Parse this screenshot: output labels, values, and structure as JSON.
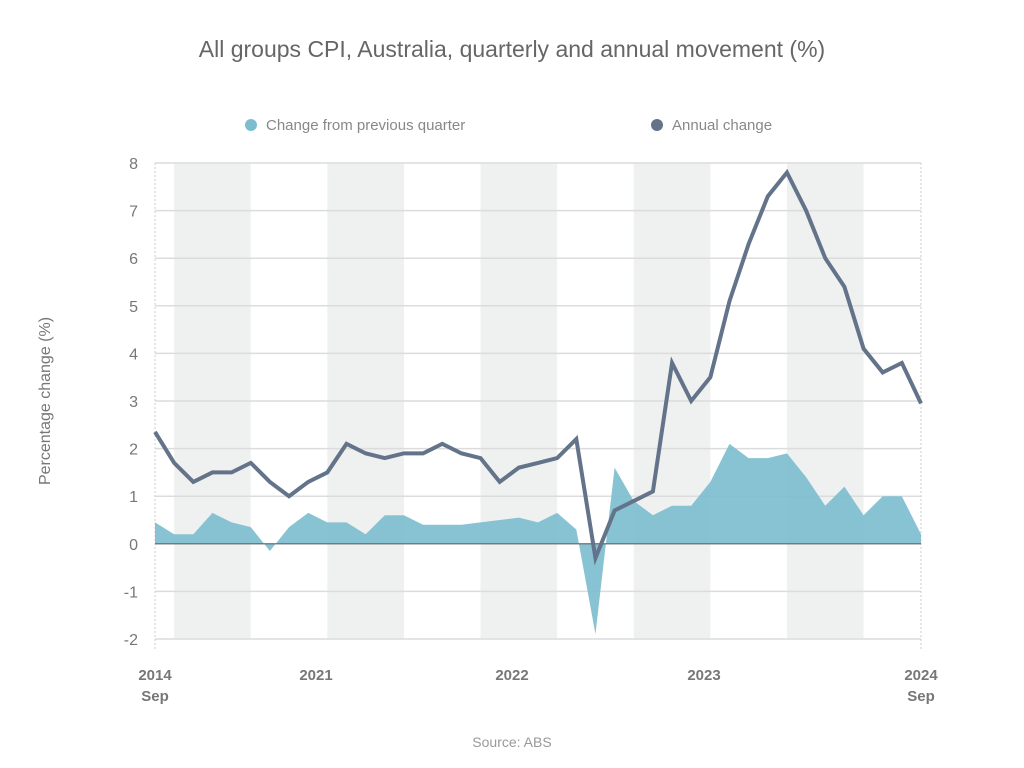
{
  "chart_data": {
    "type": "line",
    "title": "All groups CPI, Australia, quarterly and annual movement (%)",
    "ylabel": "Percentage change (%)",
    "xlabel": "",
    "ylim": [
      -2,
      8
    ],
    "yticks": [
      8,
      7,
      6,
      5,
      4,
      3,
      2,
      1,
      0,
      -1,
      -2
    ],
    "grid": true,
    "legend_placement": "top",
    "x_tick_labels": [
      {
        "line1": "2014",
        "line2": "Sep"
      },
      {
        "line1": "2021",
        "line2": ""
      },
      {
        "line1": "2022",
        "line2": ""
      },
      {
        "line1": "2023",
        "line2": ""
      },
      {
        "line1": "2024",
        "line2": "Sep"
      }
    ],
    "series": [
      {
        "name": "Change from previous quarter",
        "type": "area",
        "color": "#7bbccf",
        "values": [
          0.45,
          0.2,
          0.2,
          0.65,
          0.45,
          0.35,
          -0.15,
          0.35,
          0.65,
          0.45,
          0.45,
          0.2,
          0.6,
          0.6,
          0.4,
          0.4,
          0.4,
          0.45,
          0.5,
          0.55,
          0.45,
          0.65,
          0.3,
          -1.9,
          1.6,
          0.9,
          0.6,
          0.8,
          0.8,
          1.3,
          2.1,
          1.8,
          1.8,
          1.9,
          1.4,
          0.8,
          1.2,
          0.6,
          1.0,
          1.0,
          0.2
        ]
      },
      {
        "name": "Annual change",
        "type": "line",
        "color": "#637389",
        "values": [
          2.35,
          1.7,
          1.3,
          1.5,
          1.5,
          1.7,
          1.3,
          1.0,
          1.3,
          1.5,
          2.1,
          1.9,
          1.8,
          1.9,
          1.9,
          2.1,
          1.9,
          1.8,
          1.3,
          1.6,
          1.7,
          1.8,
          2.2,
          -0.3,
          0.7,
          0.9,
          1.1,
          3.8,
          3.0,
          3.5,
          5.1,
          6.3,
          7.3,
          7.8,
          7.0,
          6.0,
          5.4,
          4.1,
          3.6,
          3.8,
          2.95
        ]
      }
    ],
    "source": "Source: ABS"
  }
}
